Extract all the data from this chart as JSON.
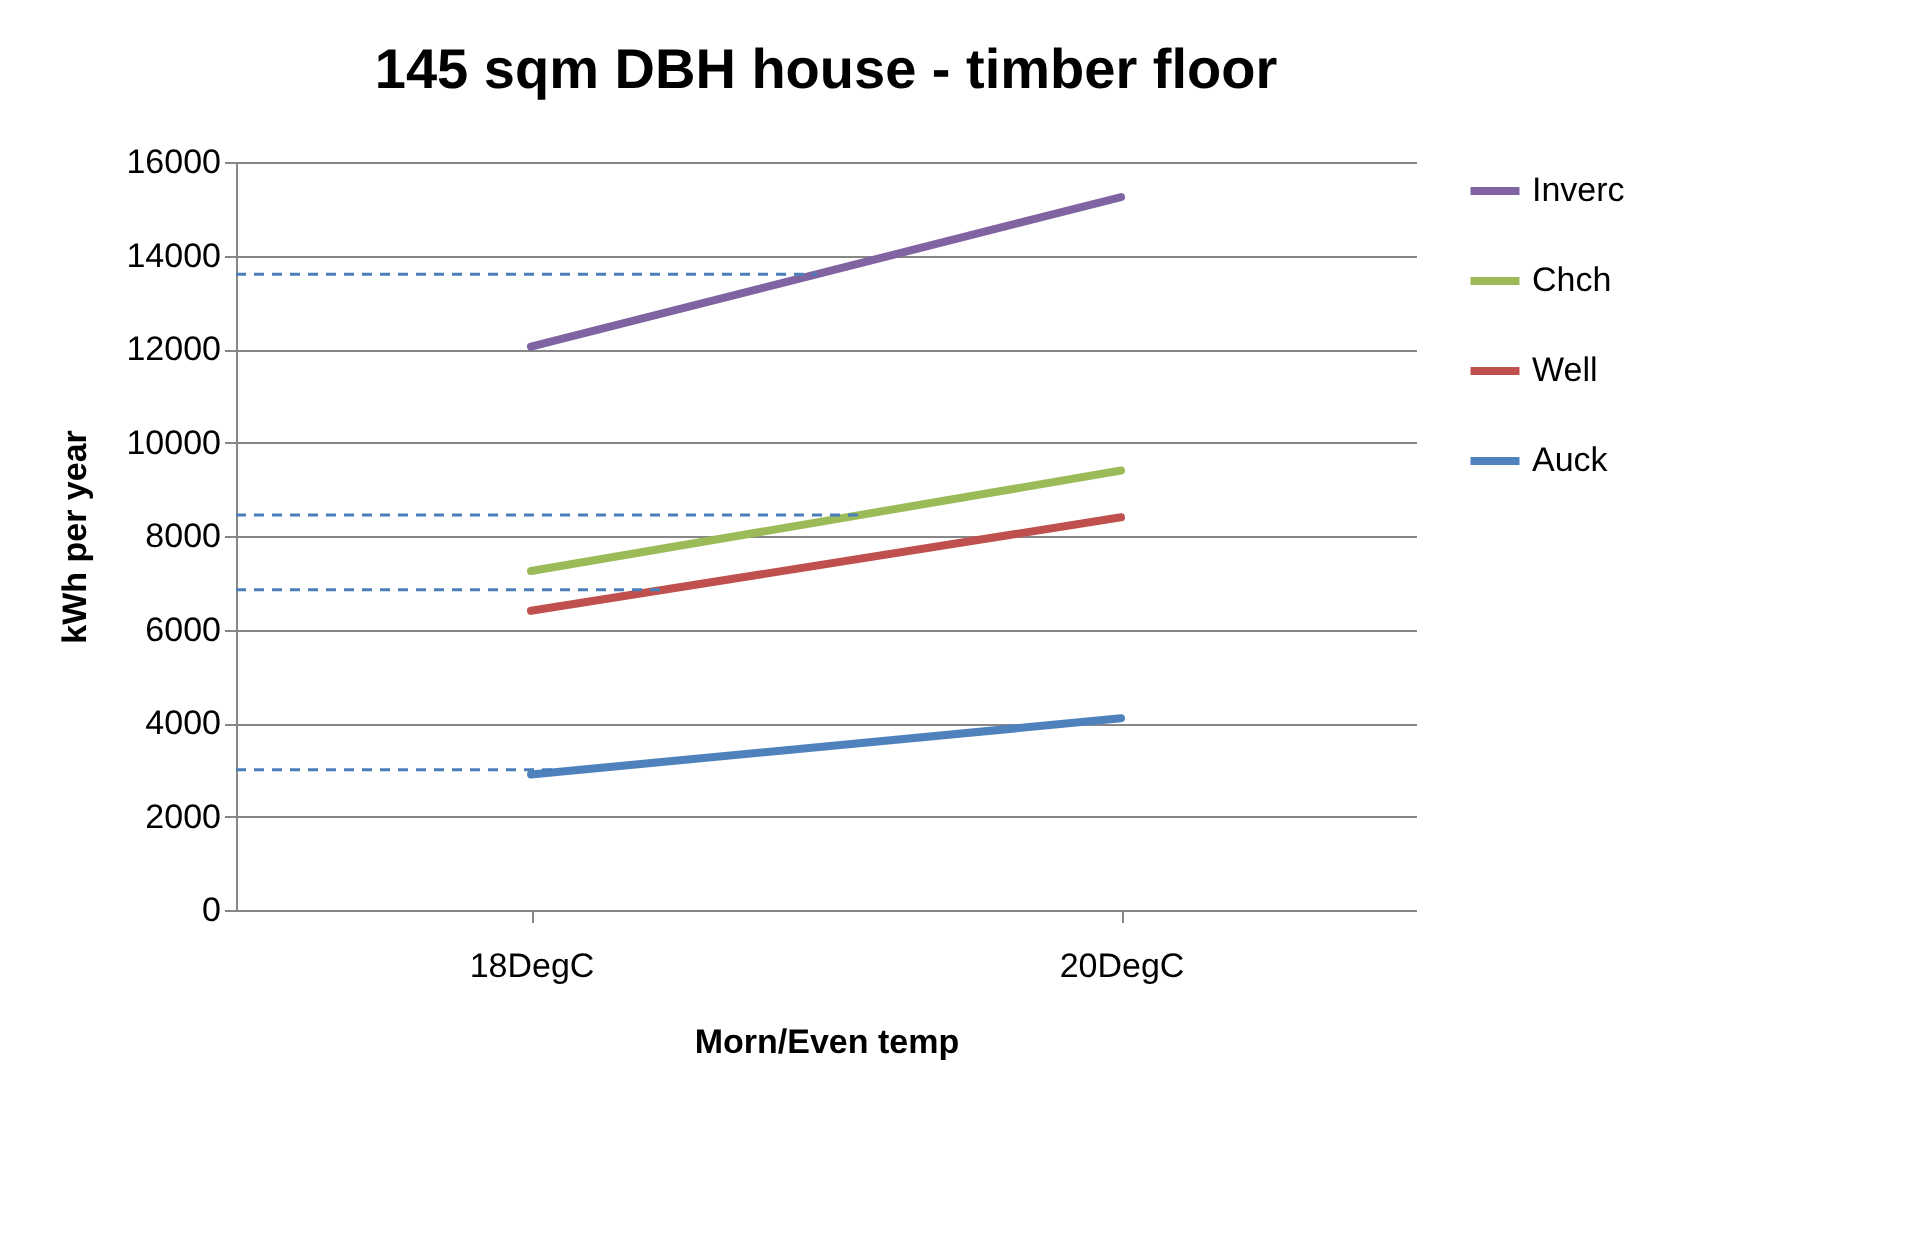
{
  "chart_data": {
    "type": "line",
    "title": "145 sqm DBH house  - timber floor",
    "xlabel": "Morn/Even temp",
    "ylabel": "kWh per year",
    "categories": [
      "18DegC",
      "20DegC"
    ],
    "series": [
      {
        "name": "Inverc",
        "color": "#8064a2",
        "values": [
          12050,
          15250
        ]
      },
      {
        "name": "Chch",
        "color": "#9bbb59",
        "values": [
          7250,
          9400
        ]
      },
      {
        "name": "Well",
        "color": "#c0504d",
        "values": [
          6400,
          8400
        ]
      },
      {
        "name": "Auck",
        "color": "#4f81bd",
        "values": [
          2900,
          4100
        ]
      }
    ],
    "ylim": [
      0,
      16000
    ],
    "yticks": [
      0,
      2000,
      4000,
      6000,
      8000,
      10000,
      12000,
      14000,
      16000
    ],
    "ref_lines": [
      {
        "axis": "y",
        "value": 13600,
        "color": "#4a7ebb",
        "line_style": "dashed"
      },
      {
        "axis": "y",
        "value": 8450,
        "color": "#4a7ebb",
        "line_style": "dashed"
      },
      {
        "axis": "y",
        "value": 6850,
        "color": "#4a7ebb",
        "line_style": "dashed"
      },
      {
        "axis": "y",
        "value": 3000,
        "color": "#4a7ebb",
        "line_style": "dashed"
      }
    ],
    "grid": "y",
    "legend": "right",
    "marker": "none",
    "line_style": "solid"
  }
}
